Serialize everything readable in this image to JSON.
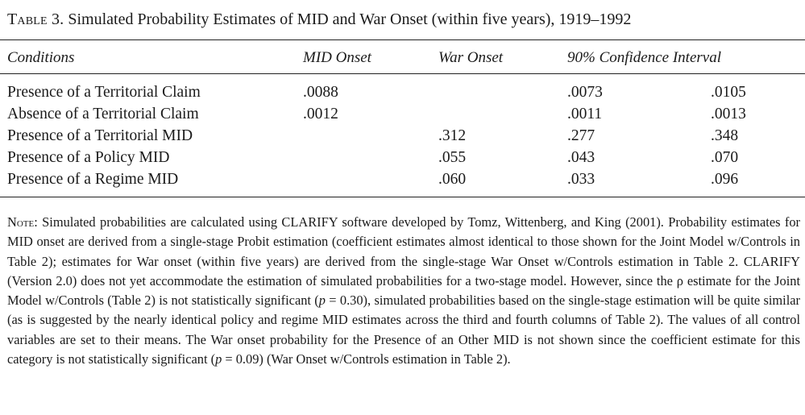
{
  "caption": {
    "label": "Table 3.",
    "title": "Simulated Probability Estimates of MID and War Onset (within five years), 1919–1992"
  },
  "columns": {
    "conditions": "Conditions",
    "mid_onset": "MID Onset",
    "war_onset": "War Onset",
    "ci": "90% Confidence Interval"
  },
  "rows": [
    {
      "condition": "Presence of a Territorial Claim",
      "mid_onset": ".0088",
      "war_onset": "",
      "ci_low": ".0073",
      "ci_high": ".0105"
    },
    {
      "condition": "Absence of a Territorial Claim",
      "mid_onset": ".0012",
      "war_onset": "",
      "ci_low": ".0011",
      "ci_high": ".0013"
    },
    {
      "condition": "Presence of a Territorial MID",
      "mid_onset": "",
      "war_onset": ".312",
      "ci_low": ".277",
      "ci_high": ".348"
    },
    {
      "condition": "Presence of a Policy MID",
      "mid_onset": "",
      "war_onset": ".055",
      "ci_low": ".043",
      "ci_high": ".070"
    },
    {
      "condition": "Presence of a Regime MID",
      "mid_onset": "",
      "war_onset": ".060",
      "ci_low": ".033",
      "ci_high": ".096"
    }
  ],
  "note": {
    "label": "Note:",
    "part1": " Simulated probabilities are calculated using CLARIFY software developed by Tomz, Wittenberg, and King (2001). Probability estimates for MID onset are derived from a single-stage Probit estimation (coefficient estimates almost identical to those shown for the Joint Model w/Controls in Table 2); estimates for War onset (within five years) are derived from the single-stage War Onset w/Controls estimation in Table 2. CLARIFY (Version 2.0) does not yet accommodate the estimation of simulated probabilities for a two-stage model. However, since the ρ estimate for the Joint Model w/Controls (Table 2) is not statistically significant (",
    "p1_sym": "p",
    "part2": " = 0.30), simulated probabilities based on the single-stage estimation will be quite similar (as is suggested by the nearly identical policy and regime MID estimates across the third and fourth columns of Table 2). The values of all control variables are set to their means. The War onset probability for the Presence of an Other MID is not shown since the coefficient estimate for this category is not statistically significant (",
    "p2_sym": "p",
    "part3": " = 0.09) (War Onset w/Controls estimation in Table 2)."
  }
}
